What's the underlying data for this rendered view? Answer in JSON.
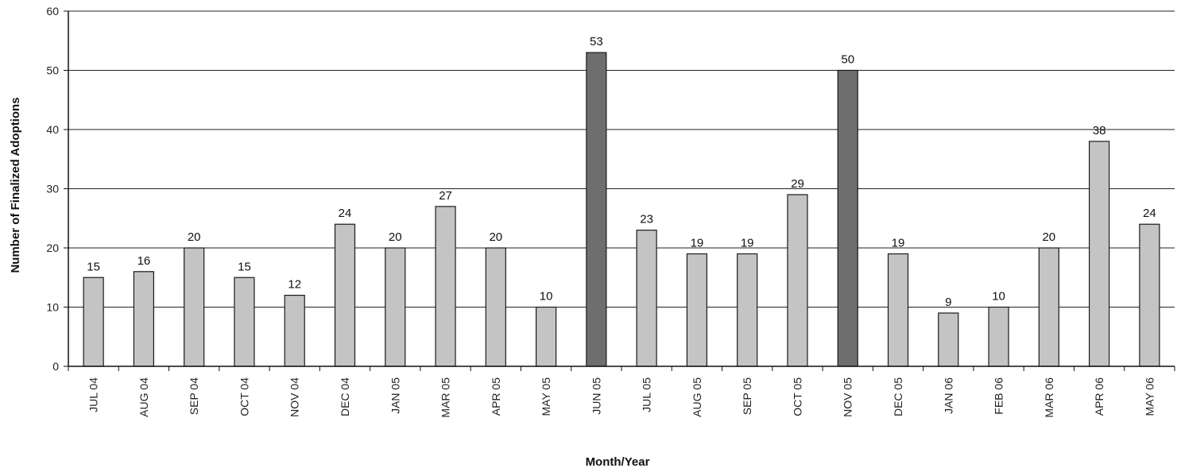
{
  "chart_data": {
    "type": "bar",
    "ylabel": "Number of Finalized Adoptions",
    "xlabel": "Month/Year",
    "ylim": [
      0,
      60
    ],
    "yticks": [
      0,
      10,
      20,
      30,
      40,
      50,
      60
    ],
    "grid": true,
    "categories": [
      "JUL 04",
      "AUG 04",
      "SEP 04",
      "OCT 04",
      "NOV 04",
      "DEC 04",
      "JAN 05",
      "MAR 05",
      "APR 05",
      "MAY 05",
      "JUN 05",
      "JUL 05",
      "AUG 05",
      "SEP 05",
      "OCT 05",
      "NOV 05",
      "DEC 05",
      "JAN 06",
      "FEB 06",
      "MAR 06",
      "APR 06",
      "MAY 06"
    ],
    "values": [
      15,
      16,
      20,
      15,
      12,
      24,
      20,
      27,
      20,
      10,
      53,
      23,
      19,
      19,
      29,
      50,
      19,
      9,
      10,
      20,
      38,
      24
    ],
    "value_labels": [
      "15",
      "16",
      "20",
      "15",
      "12",
      "24",
      "20",
      "27",
      "20",
      "10",
      "53",
      "23",
      "19",
      "19",
      "29",
      "50",
      "19",
      "9",
      "10",
      "20",
      "38",
      "24"
    ],
    "colors": {
      "bar": "#c4c4c4",
      "bar_highlight": "#6e6e6e",
      "bar_stroke": "#1a1a1a",
      "grid": "#222222",
      "axis": "#111111"
    },
    "highlighted": [
      "JUN 05",
      "NOV 05"
    ]
  }
}
